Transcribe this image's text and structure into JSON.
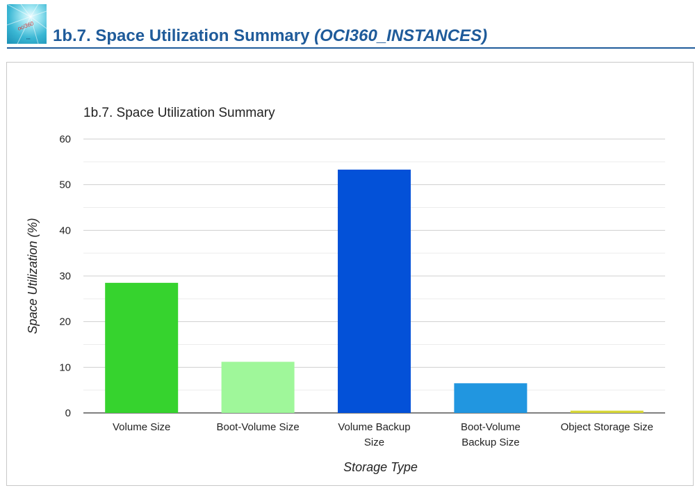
{
  "header": {
    "title_main": "1b.7. Space Utilization Summary",
    "title_italic": "(OCI360_INSTANCES)",
    "logo_text": "oci360"
  },
  "chart_data": {
    "type": "bar",
    "title": "1b.7. Space Utilization Summary",
    "xlabel": "Storage Type",
    "ylabel": "Space Utilization (%)",
    "categories": [
      [
        "Volume Size"
      ],
      [
        "Boot-Volume Size"
      ],
      [
        "Volume Backup",
        "Size"
      ],
      [
        "Boot-Volume",
        "Backup Size"
      ],
      [
        "Object Storage Size"
      ]
    ],
    "values": [
      28.5,
      11.2,
      53.3,
      6.5,
      0.5
    ],
    "colors": [
      "#36d32e",
      "#9ff79a",
      "#0351d8",
      "#2196e0",
      "#d8d838"
    ],
    "ylim": [
      0,
      60
    ],
    "yticks": [
      0,
      10,
      20,
      30,
      40,
      50,
      60
    ],
    "grid": true,
    "legend": "none"
  }
}
